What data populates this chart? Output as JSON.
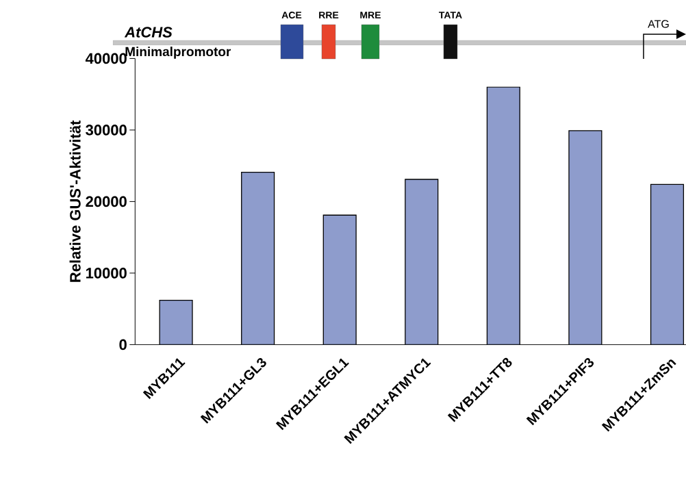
{
  "chart_data": {
    "type": "bar",
    "categories": [
      "MYB111",
      "MYB111+GL3",
      "MYB111+EGL1",
      "MYB111+ATMYC1",
      "MYB111+TT8",
      "MYB111+PIF3",
      "MYB111+ZmSn"
    ],
    "values": [
      6200,
      24100,
      18100,
      23100,
      36000,
      29900,
      22400
    ],
    "color": "#8e9ccc",
    "ylabel": "Relative GUS'-Aktivität",
    "ylim": [
      0,
      40000
    ],
    "yticks": [
      0,
      10000,
      20000,
      30000,
      40000
    ],
    "annotations": [
      "AtCHS",
      "Minimalpromotor",
      "ACE",
      "RRE",
      "MRE",
      "TATA",
      "ATG"
    ]
  }
}
